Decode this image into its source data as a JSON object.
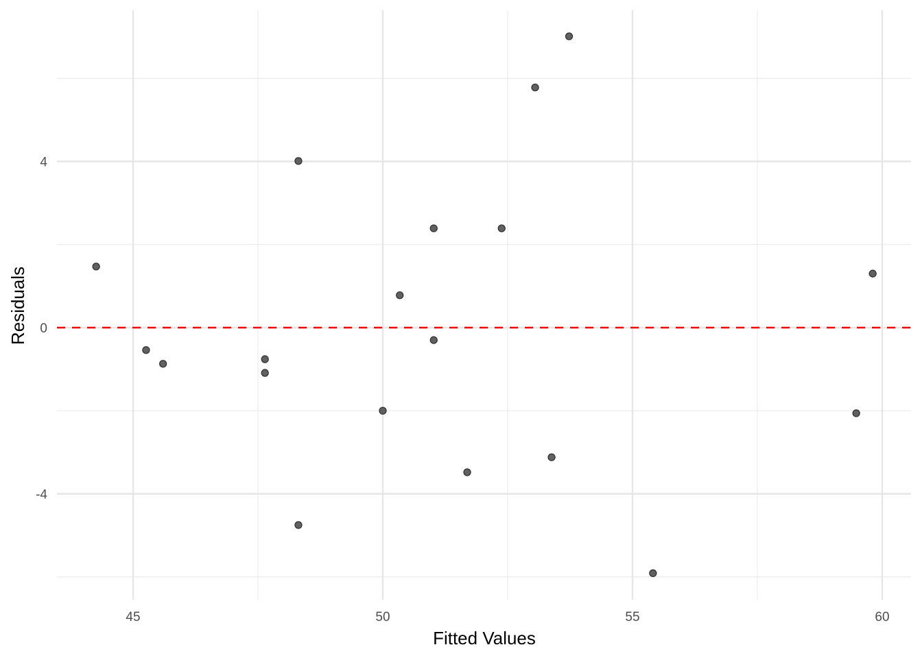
{
  "chart_data": {
    "type": "scatter",
    "title": "",
    "xlabel": "Fitted Values",
    "ylabel": "Residuals",
    "xlim": [
      43.5,
      61.1
    ],
    "ylim": [
      -6.4,
      7.6
    ],
    "xticks": [
      45,
      50,
      55,
      60
    ],
    "xtick_labels": [
      "45",
      "50",
      "55",
      "60"
    ],
    "xminor": [
      47.5,
      52.5,
      57.5
    ],
    "yticks": [
      -4,
      0,
      4
    ],
    "ytick_labels": [
      "-4",
      "0",
      "4"
    ],
    "yminor": [
      -6,
      -2,
      2,
      6
    ],
    "grid": true,
    "reference_line": {
      "y": 0,
      "color": "#ff0000",
      "style": "dashed"
    },
    "point_color": "#595959",
    "points": [
      {
        "x": 44.26,
        "y": 1.47
      },
      {
        "x": 45.26,
        "y": -0.54
      },
      {
        "x": 45.6,
        "y": -0.87
      },
      {
        "x": 47.64,
        "y": -0.76
      },
      {
        "x": 47.64,
        "y": -1.09
      },
      {
        "x": 48.31,
        "y": 4.01
      },
      {
        "x": 48.31,
        "y": -4.75
      },
      {
        "x": 50.0,
        "y": -2.0
      },
      {
        "x": 50.34,
        "y": 0.78
      },
      {
        "x": 51.02,
        "y": 2.39
      },
      {
        "x": 51.02,
        "y": -0.3
      },
      {
        "x": 51.69,
        "y": -3.48
      },
      {
        "x": 52.38,
        "y": 2.39
      },
      {
        "x": 53.05,
        "y": 5.78
      },
      {
        "x": 53.38,
        "y": -3.12
      },
      {
        "x": 53.73,
        "y": 7.01
      },
      {
        "x": 55.41,
        "y": -5.91
      },
      {
        "x": 59.48,
        "y": -2.06
      },
      {
        "x": 59.81,
        "y": 1.3
      }
    ]
  }
}
